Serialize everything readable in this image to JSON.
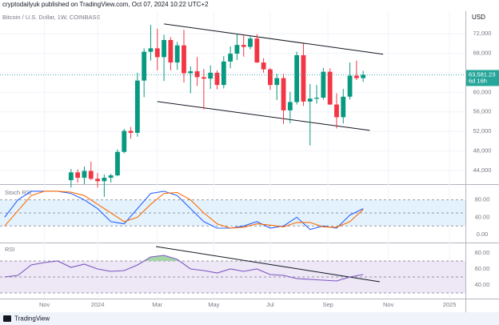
{
  "header": {
    "publisher": "cryptodailyuk published on TradingView.com, Oct 07, 2024 10:22 UTC+2",
    "currency": "USD"
  },
  "footer": {
    "brand": "TradingView"
  },
  "chart_data": [
    {
      "type": "candlestick",
      "title": "Bitcoin / U.S. Dollar, 1W, COINBASE",
      "x": [
        4,
        5,
        6,
        7,
        8,
        9,
        10,
        11,
        12,
        13,
        14,
        15,
        16,
        17,
        18,
        19,
        20,
        21,
        22,
        23,
        24,
        25,
        26,
        27,
        28,
        29,
        30,
        31,
        32,
        33,
        34,
        35,
        36,
        37,
        38,
        39,
        40,
        41,
        42,
        43,
        44,
        45,
        46,
        47,
        48
      ],
      "open": [
        42000,
        43600,
        42500,
        43900,
        42300,
        41800,
        42500,
        43000,
        47800,
        52100,
        51700,
        62400,
        68300,
        69000,
        67200,
        70700,
        66100,
        69600,
        63900,
        64300,
        63100,
        62800,
        64000,
        61500,
        66300,
        67900,
        69700,
        69300,
        71000,
        66100,
        64700,
        61500,
        62900,
        56300,
        58000,
        67600,
        58100,
        58700,
        58900,
        64200,
        57500,
        54900,
        59100,
        63400,
        62900
      ],
      "high": [
        44300,
        44200,
        44800,
        45800,
        43500,
        43200,
        43300,
        48300,
        52500,
        52900,
        64000,
        69000,
        73800,
        73000,
        71800,
        71300,
        70300,
        72800,
        65300,
        67200,
        64800,
        65500,
        64500,
        67400,
        69400,
        71900,
        71700,
        71500,
        71900,
        67000,
        65000,
        63800,
        63800,
        60100,
        68300,
        70000,
        61700,
        61500,
        65000,
        64900,
        59800,
        60700,
        66100,
        66500,
        64400
      ],
      "low": [
        40500,
        41500,
        41200,
        42000,
        40500,
        38600,
        41500,
        42800,
        47500,
        50500,
        50900,
        59000,
        66500,
        64500,
        62300,
        64500,
        64600,
        62000,
        59800,
        61300,
        56500,
        60700,
        60600,
        60800,
        64900,
        66600,
        67300,
        68800,
        66000,
        64000,
        60500,
        58400,
        53500,
        53700,
        57500,
        57200,
        49100,
        57700,
        58500,
        57400,
        52600,
        53600,
        58500,
        62500,
        62100
      ],
      "close": [
        43600,
        42500,
        43900,
        42300,
        41800,
        42500,
        43000,
        47800,
        52100,
        51700,
        62400,
        68300,
        69000,
        67200,
        70700,
        66100,
        69600,
        63900,
        64300,
        63100,
        62800,
        64000,
        61500,
        66300,
        67900,
        69700,
        69300,
        71000,
        66100,
        64700,
        61500,
        62900,
        56300,
        58000,
        67600,
        58100,
        58700,
        58900,
        64200,
        57500,
        54900,
        59100,
        63400,
        62900,
        63581.23
      ],
      "up_color": "#089981",
      "down_color": "#f23645",
      "xlim": [
        -6.7,
        63.4
      ],
      "ylim": [
        41200,
        76600
      ],
      "xticks": [
        {
          "value": 0,
          "label": "Nov"
        },
        {
          "value": 8,
          "label": "2024"
        },
        {
          "value": 17,
          "label": "Mar"
        },
        {
          "value": 25.5,
          "label": "May"
        },
        {
          "value": 34,
          "label": "Jul"
        },
        {
          "value": 42.7,
          "label": "Sep"
        },
        {
          "value": 51.8,
          "label": "Nov"
        },
        {
          "value": 61,
          "label": "2025"
        }
      ],
      "yticks": [
        {
          "value": 44000,
          "label": "44,000"
        },
        {
          "value": 48000,
          "label": "48,000"
        },
        {
          "value": 52000,
          "label": "52,000"
        },
        {
          "value": 56000,
          "label": "56,000"
        },
        {
          "value": 60000,
          "label": "60,000"
        },
        {
          "value": 64000,
          "label": "64,000"
        },
        {
          "value": 68000,
          "label": "68,000"
        },
        {
          "value": 72000,
          "label": "72,000"
        }
      ],
      "last_price": {
        "value": 63581.23,
        "label": "63,581.23"
      },
      "countdown": "6d 16h",
      "last_price_color": "#26a69a",
      "trendlines": [
        {
          "x": [
            18,
            51
          ],
          "values": [
            74000,
            67800
          ]
        },
        {
          "x": [
            17,
            49
          ],
          "values": [
            58100,
            52200
          ]
        }
      ],
      "trendline_color": "#131722"
    },
    {
      "type": "line",
      "title": "Stoch RSI",
      "x": [
        -6,
        -4,
        -2,
        0,
        2,
        4,
        6,
        8,
        10,
        12,
        14,
        16,
        18,
        20,
        22,
        24,
        26,
        28,
        30,
        32,
        34,
        36,
        38,
        40,
        42,
        44,
        46,
        48
      ],
      "series": [
        {
          "color": "#2962ff",
          "values": [
            40,
            80,
            100,
            100,
            100,
            95,
            80,
            60,
            30,
            25,
            60,
            95,
            100,
            90,
            60,
            30,
            15,
            15,
            20,
            30,
            15,
            20,
            40,
            12,
            20,
            15,
            45,
            60
          ]
        },
        {
          "color": "#ff6d00",
          "values": [
            20,
            55,
            90,
            100,
            100,
            98,
            90,
            70,
            50,
            30,
            40,
            70,
            95,
            97,
            80,
            50,
            25,
            15,
            17,
            25,
            22,
            18,
            28,
            28,
            18,
            17,
            30,
            58
          ]
        }
      ],
      "ylim": [
        -18.2,
        112.7
      ],
      "yticks": [
        {
          "value": 0,
          "label": "0.00"
        },
        {
          "value": 40,
          "label": "40.00"
        },
        {
          "value": 80,
          "label": "80.00"
        }
      ],
      "band": [
        20,
        80
      ],
      "levels": [
        80,
        50,
        20
      ],
      "band_color": "#e3f2fd"
    },
    {
      "type": "line",
      "title": "RSI",
      "x": [
        -6,
        -4,
        -2,
        0,
        2,
        4,
        6,
        8,
        10,
        12,
        14,
        16,
        18,
        20,
        22,
        24,
        26,
        28,
        30,
        32,
        34,
        36,
        38,
        40,
        42,
        44,
        46,
        48
      ],
      "series": [
        {
          "color": "#7e57c2",
          "values": [
            50,
            52,
            65,
            68,
            70,
            62,
            66,
            60,
            57,
            58,
            65,
            75,
            77,
            72,
            60,
            58,
            55,
            60,
            57,
            60,
            53,
            52,
            48,
            47,
            46,
            45,
            50,
            53
          ]
        }
      ],
      "ylim": [
        24,
        91
      ],
      "yticks": [
        {
          "value": 40,
          "label": "40.00"
        },
        {
          "value": 60,
          "label": "60.00"
        },
        {
          "value": 80,
          "label": "80.00"
        }
      ],
      "band": [
        30,
        70
      ],
      "levels": [
        70,
        50,
        30
      ],
      "band_color": "#ede7f6",
      "overbought_color": "#a5d6a7",
      "trendlines": [
        {
          "x": [
            16.8,
            50.5
          ],
          "values": [
            88,
            44
          ]
        }
      ],
      "trendline_color": "#131722"
    }
  ]
}
